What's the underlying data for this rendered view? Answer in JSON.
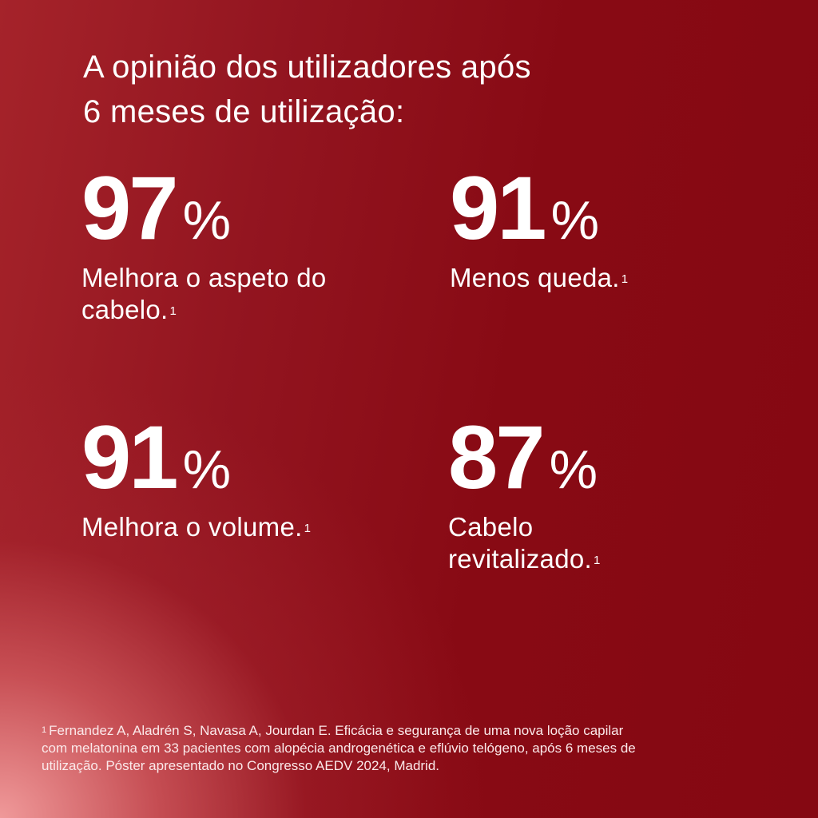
{
  "headline": {
    "line1": "A opinião dos utilizadores após",
    "line2": "6 meses de utilização:"
  },
  "stats": [
    {
      "number": "97",
      "unit": "%",
      "label_line1": "Melhora o aspeto do",
      "label_line2": "cabelo.",
      "ref": "1"
    },
    {
      "number": "91",
      "unit": "%",
      "label_line1": "Menos queda.",
      "label_line2": "",
      "ref": "1"
    },
    {
      "number": "91",
      "unit": "%",
      "label_line1": "Melhora o volume.",
      "label_line2": "",
      "ref": "1"
    },
    {
      "number": "87",
      "unit": "%",
      "label_line1": "Cabelo",
      "label_line2": "revitalizado.",
      "ref": "1"
    }
  ],
  "footnote": {
    "ref": "1",
    "line1": "Fernandez A, Aladrén S, Navasa A, Jourdan E. Eficácia e segurança de uma nova loção capilar",
    "line2": "com melatonina em 33 pacientes com alopécia androgenética e eflúvio telógeno, após 6 meses de",
    "line3": "utilização. Póster apresentado no Congresso AEDV 2024, Madrid."
  },
  "colors": {
    "background": "#8a0a14",
    "glow": "#f4a0a0",
    "text": "#ffffff"
  }
}
